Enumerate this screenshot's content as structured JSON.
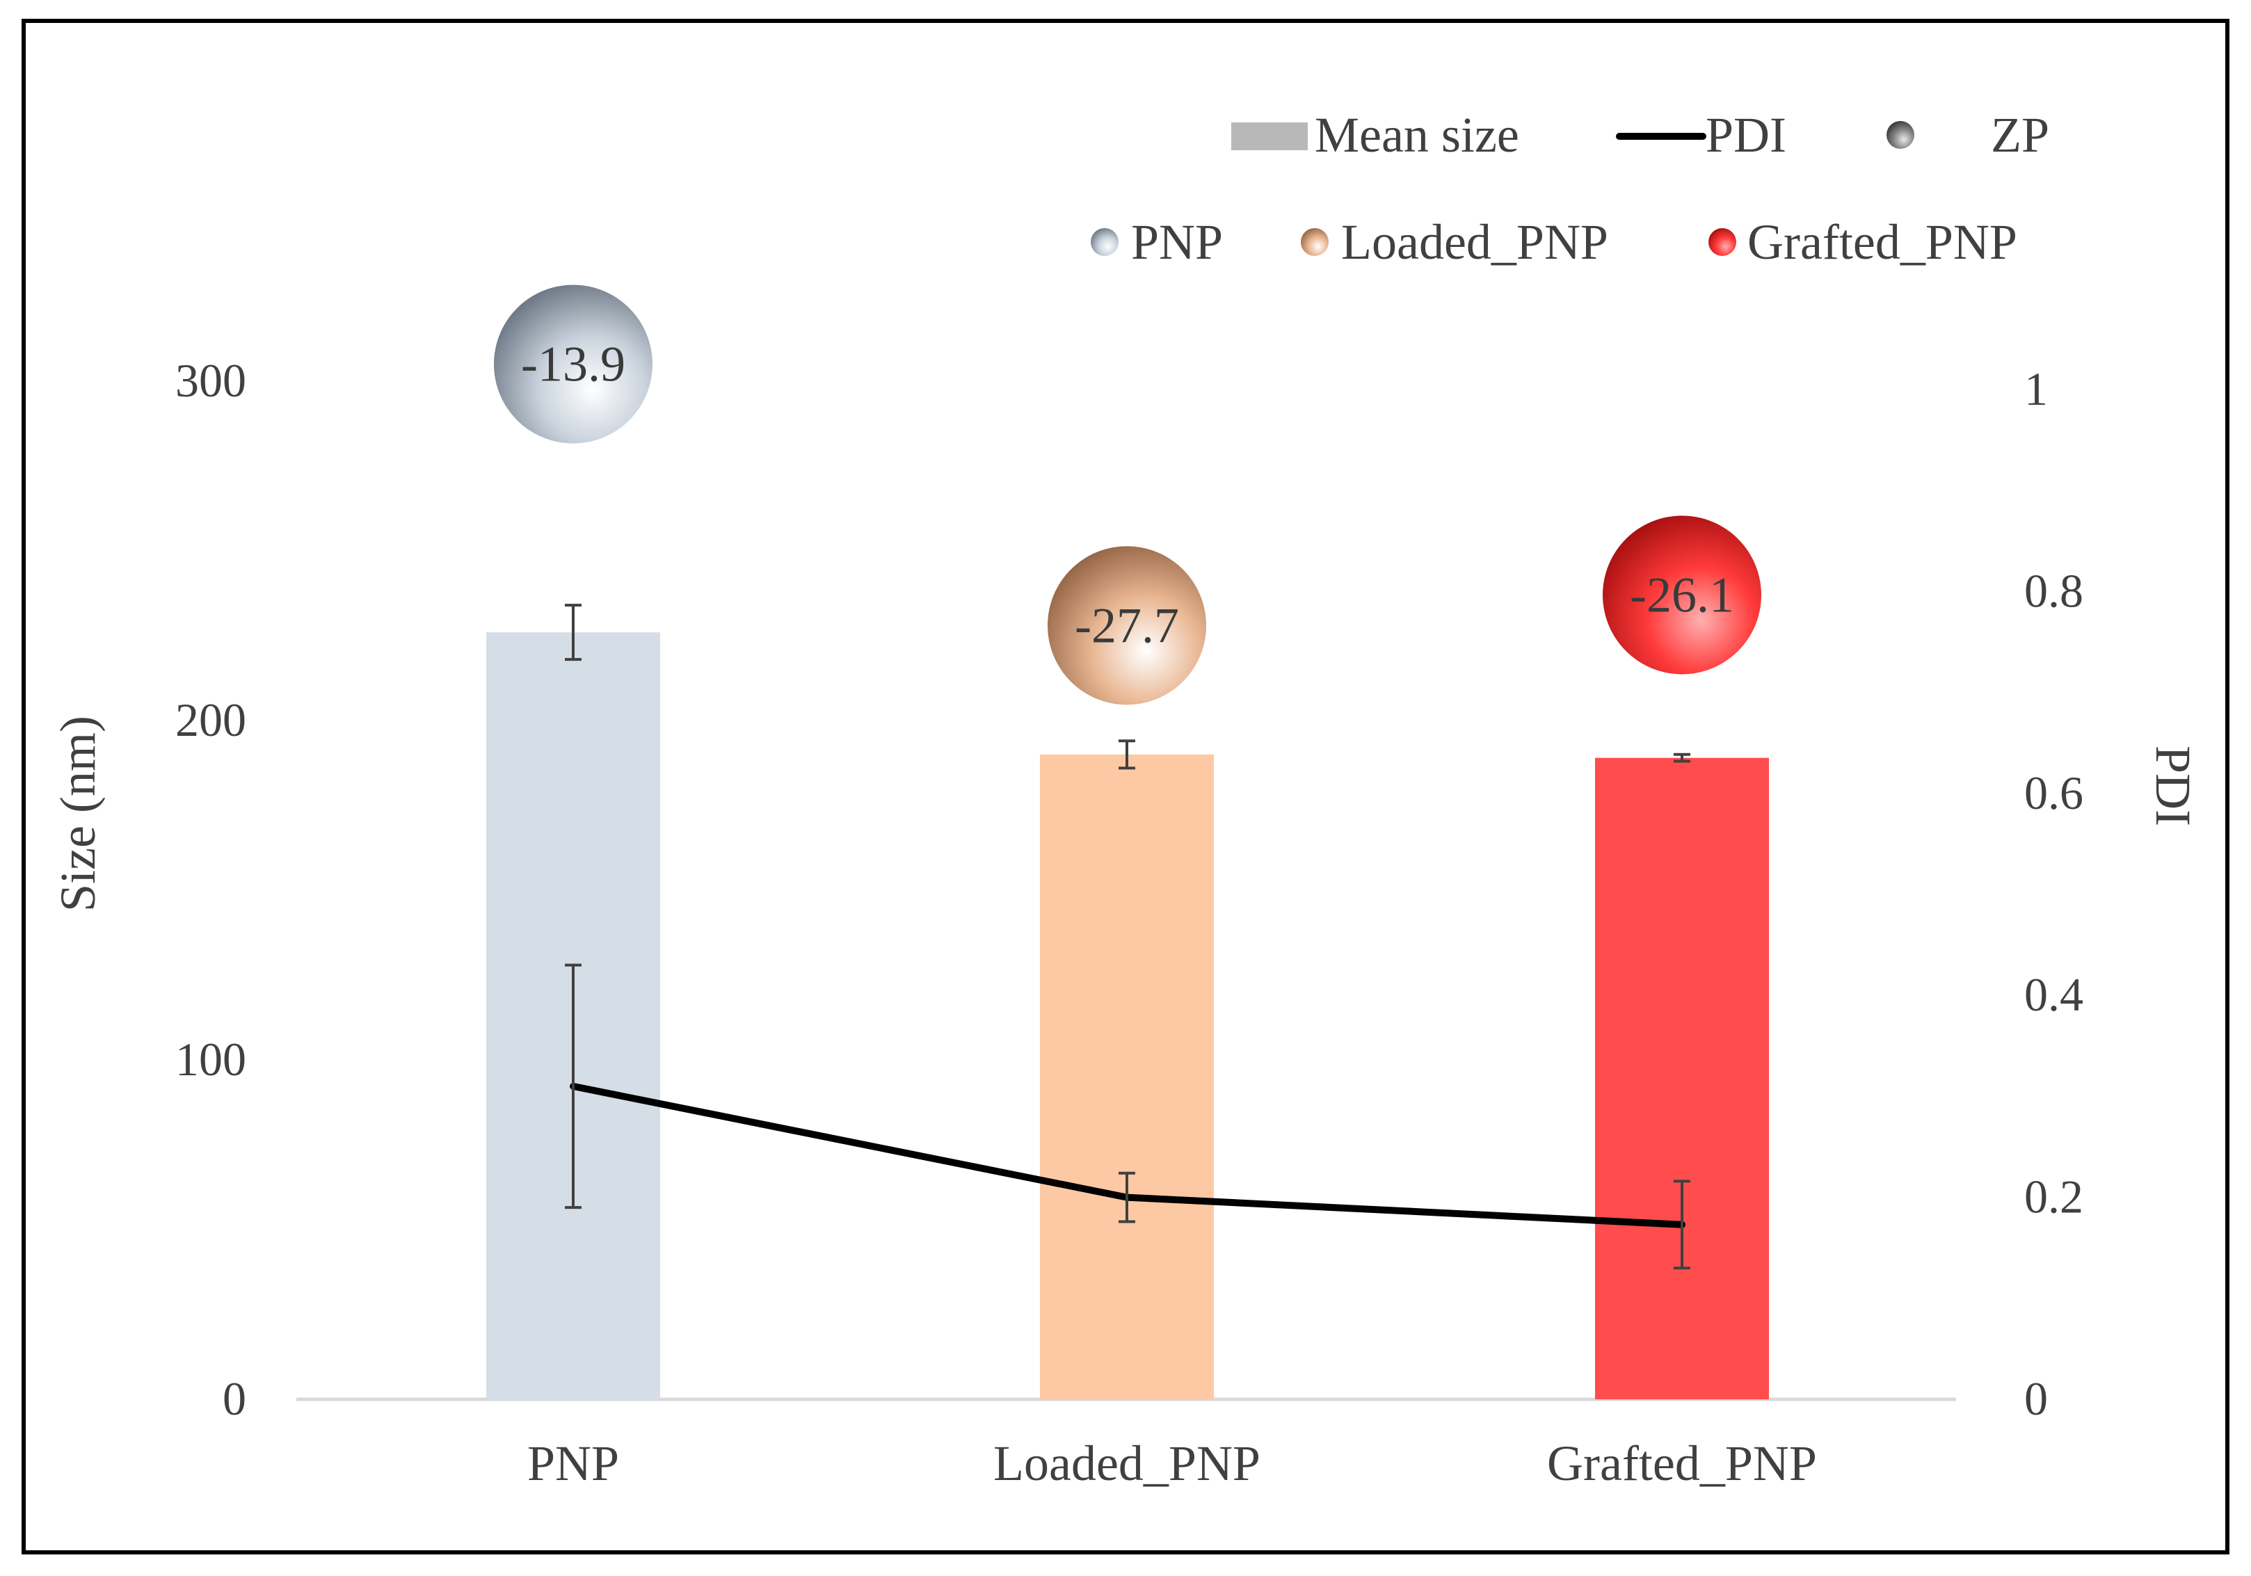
{
  "chart_data": {
    "type": "bar",
    "categories": [
      "PNP",
      "Loaded_PNP",
      "Grafted_PNP"
    ],
    "series": [
      {
        "name": "Mean size",
        "axis": "left",
        "kind": "bar",
        "values": [
          226,
          190,
          189
        ],
        "error": [
          8,
          4,
          1
        ],
        "colors": [
          "#d5dee7",
          "#fdc9a4",
          "#ff4c4c"
        ]
      },
      {
        "name": "PDI",
        "axis": "right",
        "kind": "line",
        "color": "#000000",
        "values": [
          0.31,
          0.2,
          0.173
        ],
        "error": [
          0.12,
          0.024,
          0.043
        ]
      },
      {
        "name": "ZP",
        "kind": "bubble",
        "values": [
          -13.9,
          -27.7,
          -26.1
        ],
        "labels": [
          "-13.9",
          "-27.7",
          "-26.1"
        ],
        "display_height_nm": [
          305,
          228,
          237
        ],
        "colors": [
          "#c9d2dc",
          "#e9b793",
          "#ff3a3a"
        ]
      }
    ],
    "ylabel": "Size (nm)",
    "y2label": "PDI",
    "ylim": [
      0,
      300
    ],
    "y2lim": [
      0,
      1
    ],
    "yticks": [
      "0",
      "100",
      "200",
      "300"
    ],
    "y2ticks": [
      "0",
      "0.2",
      "0.4",
      "0.6",
      "0.8",
      "1"
    ],
    "legend": {
      "row1": [
        "Mean size",
        "PDI",
        "ZP"
      ],
      "row2": [
        "PNP",
        "Loaded_PNP",
        "Grafted_PNP"
      ],
      "placement": "top-right"
    },
    "grid": false
  }
}
